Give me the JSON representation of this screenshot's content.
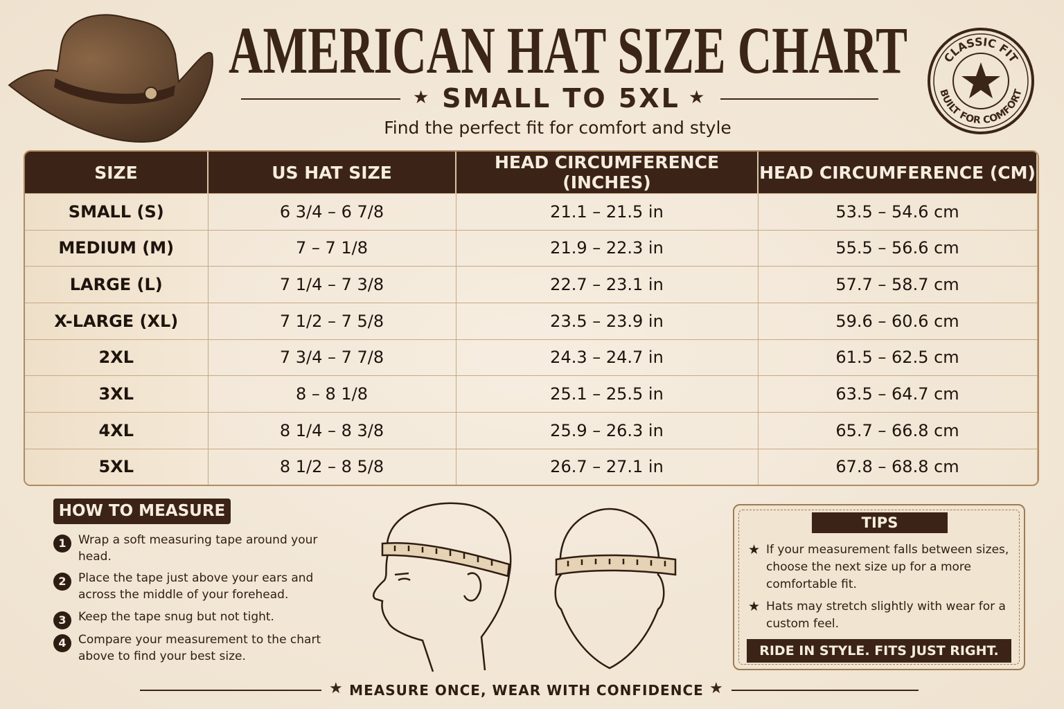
{
  "header": {
    "title": "AMERICAN HAT SIZE CHART",
    "subtitle": "SMALL TO 5XL",
    "tagline": "Find the perfect fit for comfort and style"
  },
  "badge": {
    "top": "CLASSIC FIT",
    "bottom": "BUILT FOR COMFORT"
  },
  "table": {
    "headers": [
      "SIZE",
      "US HAT SIZE",
      "HEAD CIRCUMFERENCE (INCHES)",
      "HEAD CIRCUMFERENCE (CM)"
    ],
    "rows": [
      [
        "SMALL (S)",
        "6 3/4 – 6 7/8",
        "21.1 – 21.5 in",
        "53.5 – 54.6 cm"
      ],
      [
        "MEDIUM (M)",
        "7 – 7 1/8",
        "21.9 – 22.3 in",
        "55.5 – 56.6 cm"
      ],
      [
        "LARGE (L)",
        "7 1/4 – 7 3/8",
        "22.7 – 23.1 in",
        "57.7 – 58.7 cm"
      ],
      [
        "X-LARGE (XL)",
        "7 1/2 – 7 5/8",
        "23.5 – 23.9 in",
        "59.6 – 60.6 cm"
      ],
      [
        "2XL",
        "7 3/4 – 7 7/8",
        "24.3 – 24.7 in",
        "61.5 – 62.5 cm"
      ],
      [
        "3XL",
        "8 – 8 1/8",
        "25.1 – 25.5 in",
        "63.5 – 64.7 cm"
      ],
      [
        "4XL",
        "8 1/4 – 8 3/8",
        "25.9 – 26.3 in",
        "65.7 – 66.8 cm"
      ],
      [
        "5XL",
        "8 1/2 – 8 5/8",
        "26.7 – 27.1 in",
        "67.8 – 68.8 cm"
      ]
    ]
  },
  "measure": {
    "title": "HOW TO MEASURE",
    "steps": [
      {
        "number": "1",
        "text": "Wrap a soft measuring tape around your head."
      },
      {
        "number": "2",
        "text": "Place the tape just above your ears and across the middle of your forehead."
      },
      {
        "number": "3",
        "text": "Keep the tape snug but not tight."
      },
      {
        "number": "4",
        "text": "Compare your measurement to the chart above to find your best size."
      }
    ]
  },
  "tips": {
    "title": "TIPS",
    "items": [
      "If your measurement falls between sizes, choose the next size up for a more comfortable fit.",
      "Hats may stretch slightly with wear for a custom feel."
    ],
    "banner": "RIDE IN STYLE. FITS JUST RIGHT."
  },
  "footer": "MEASURE ONCE, WEAR WITH CONFIDENCE"
}
